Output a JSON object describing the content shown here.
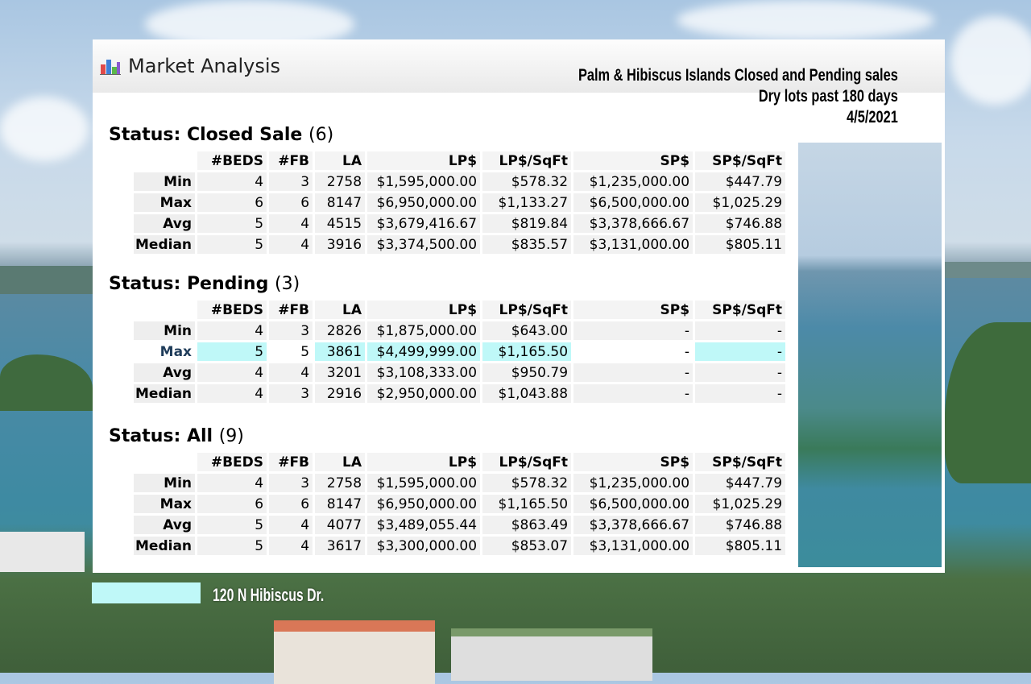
{
  "app": {
    "title": "Market Analysis",
    "icon": "bar-chart-icon"
  },
  "report": {
    "line1": "Palm & Hibiscus Islands Closed and Pending sales",
    "line2": "Dry lots past 180 days",
    "line3": "4/5/2021"
  },
  "columns": [
    "#BEDS",
    "#FB",
    "LA",
    "LP$",
    "LP$/SqFt",
    "SP$",
    "SP$/SqFt"
  ],
  "sections": [
    {
      "label": "Status: Closed Sale",
      "count": "(6)",
      "rows": [
        {
          "label": "Min",
          "cells": [
            "4",
            "3",
            "2758",
            "$1,595,000.00",
            "$578.32",
            "$1,235,000.00",
            "$447.79"
          ]
        },
        {
          "label": "Max",
          "cells": [
            "6",
            "6",
            "8147",
            "$6,950,000.00",
            "$1,133.27",
            "$6,500,000.00",
            "$1,025.29"
          ]
        },
        {
          "label": "Avg",
          "cells": [
            "5",
            "4",
            "4515",
            "$3,679,416.67",
            "$819.84",
            "$3,378,666.67",
            "$746.88"
          ]
        },
        {
          "label": "Median",
          "cells": [
            "5",
            "4",
            "3916",
            "$3,374,500.00",
            "$835.57",
            "$3,131,000.00",
            "$805.11"
          ]
        }
      ]
    },
    {
      "label": "Status: Pending",
      "count": "(3)",
      "rows": [
        {
          "label": "Min",
          "cells": [
            "4",
            "3",
            "2826",
            "$1,875,000.00",
            "$643.00",
            "-",
            "-"
          ]
        },
        {
          "label": "Max",
          "cells": [
            "5",
            "5",
            "3861",
            "$4,499,999.00",
            "$1,165.50",
            "-",
            "-"
          ]
        },
        {
          "label": "Avg",
          "cells": [
            "4",
            "4",
            "3201",
            "$3,108,333.00",
            "$950.79",
            "-",
            "-"
          ]
        },
        {
          "label": "Median",
          "cells": [
            "4",
            "3",
            "2916",
            "$2,950,000.00",
            "$1,043.88",
            "-",
            "-"
          ]
        }
      ]
    },
    {
      "label": "Status: All",
      "count": "(9)",
      "rows": [
        {
          "label": "Min",
          "cells": [
            "4",
            "3",
            "2758",
            "$1,595,000.00",
            "$578.32",
            "$1,235,000.00",
            "$447.79"
          ]
        },
        {
          "label": "Max",
          "cells": [
            "6",
            "6",
            "8147",
            "$6,950,000.00",
            "$1,165.50",
            "$6,500,000.00",
            "$1,025.29"
          ]
        },
        {
          "label": "Avg",
          "cells": [
            "5",
            "4",
            "4077",
            "$3,489,055.44",
            "$863.49",
            "$3,378,666.67",
            "$746.88"
          ]
        },
        {
          "label": "Median",
          "cells": [
            "5",
            "4",
            "3617",
            "$3,300,000.00",
            "$853.07",
            "$3,131,000.00",
            "$805.11"
          ]
        }
      ]
    }
  ],
  "legend": {
    "label": "120 N Hibiscus Dr.",
    "color": "#bff8f8"
  },
  "colors": {
    "highlight": "#bff8f8"
  }
}
